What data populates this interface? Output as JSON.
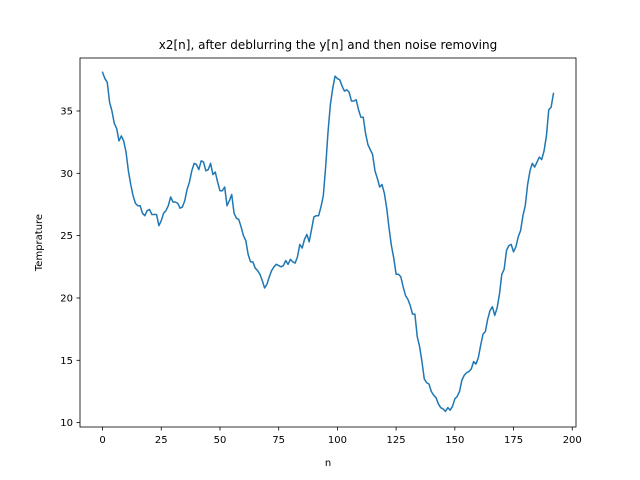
{
  "chart_data": {
    "type": "line",
    "title": "x2[n], after deblurring the y[n] and then noise removing",
    "xlabel": "n",
    "ylabel": "Temprature",
    "xlim": [
      -9.6,
      201.6
    ],
    "ylim": [
      9.65,
      39.25
    ],
    "xticks": [
      0,
      25,
      50,
      75,
      100,
      125,
      150,
      175,
      200
    ],
    "yticks": [
      10,
      15,
      20,
      25,
      30,
      35
    ],
    "grid": false,
    "line_color": "#1f77b4",
    "series": [
      {
        "x": [
          0,
          1,
          2,
          3,
          4,
          5,
          6,
          7,
          8,
          9,
          10,
          11,
          12,
          13,
          14,
          15,
          16,
          17,
          18,
          19,
          20,
          21,
          22,
          23,
          24,
          25,
          26,
          27,
          28,
          29,
          30,
          31,
          32,
          33,
          34,
          35,
          36,
          37,
          38,
          39,
          40,
          41,
          42,
          43,
          44,
          45,
          46,
          47,
          48,
          49,
          50,
          51,
          52,
          53,
          54,
          55,
          56,
          57,
          58,
          59,
          60,
          61,
          62,
          63,
          64,
          65,
          66,
          67,
          68,
          69,
          70,
          71,
          72,
          73,
          74,
          75,
          76,
          77,
          78,
          79,
          80,
          81,
          82,
          83,
          84,
          85,
          86,
          87,
          88,
          89,
          90,
          91,
          92,
          93,
          94,
          95,
          96,
          97,
          98,
          99,
          100,
          101,
          102,
          103,
          104,
          105,
          106,
          107,
          108,
          109,
          110,
          111,
          112,
          113,
          114,
          115,
          116,
          117,
          118,
          119,
          120,
          121,
          122,
          123,
          124,
          125,
          126,
          127,
          128,
          129,
          130,
          131,
          132,
          133,
          134,
          135,
          136,
          137,
          138,
          139,
          140,
          141,
          142,
          143,
          144,
          145,
          146,
          147,
          148,
          149,
          150,
          151,
          152,
          153,
          154,
          155,
          156,
          157,
          158,
          159,
          160,
          161,
          162,
          163,
          164,
          165,
          166,
          167,
          168,
          169,
          170,
          171,
          172,
          173,
          174,
          175,
          176,
          177,
          178,
          179,
          180,
          181,
          182,
          183,
          184,
          185,
          186,
          187,
          188,
          189,
          190,
          191,
          192
        ],
        "y": [
          38.1,
          37.6,
          37.3,
          35.7,
          35.0,
          34.0,
          33.6,
          32.6,
          33.0,
          32.6,
          31.7,
          30.2,
          29.1,
          28.2,
          27.6,
          27.4,
          27.4,
          26.8,
          26.6,
          27.0,
          27.1,
          26.7,
          26.7,
          26.7,
          25.8,
          26.2,
          26.8,
          27.0,
          27.4,
          28.1,
          27.7,
          27.7,
          27.6,
          27.2,
          27.3,
          27.8,
          28.7,
          29.3,
          30.2,
          30.8,
          30.7,
          30.3,
          31.0,
          30.9,
          30.2,
          30.3,
          30.8,
          29.9,
          30.1,
          29.3,
          28.6,
          28.6,
          28.9,
          27.4,
          27.8,
          28.3,
          26.8,
          26.4,
          26.3,
          25.7,
          25.0,
          24.6,
          23.5,
          22.9,
          22.9,
          22.4,
          22.2,
          21.9,
          21.4,
          20.8,
          21.1,
          21.7,
          22.2,
          22.5,
          22.7,
          22.6,
          22.5,
          22.6,
          23.0,
          22.7,
          23.1,
          22.9,
          22.8,
          23.3,
          24.3,
          24.0,
          24.7,
          25.1,
          24.5,
          25.5,
          26.5,
          26.6,
          26.6,
          27.3,
          28.2,
          30.5,
          33.3,
          35.5,
          36.8,
          37.8,
          37.6,
          37.5,
          37.0,
          36.6,
          36.7,
          36.5,
          35.8,
          35.8,
          35.9,
          35.1,
          34.5,
          34.5,
          33.2,
          32.3,
          31.9,
          31.5,
          30.2,
          29.6,
          28.9,
          29.1,
          28.4,
          27.2,
          25.6,
          24.2,
          23.2,
          21.9,
          21.9,
          21.7,
          20.9,
          20.2,
          19.9,
          19.4,
          18.7,
          18.7,
          16.9,
          16.1,
          14.9,
          13.5,
          13.2,
          13.1,
          12.5,
          12.2,
          12.0,
          11.5,
          11.2,
          11.1,
          10.9,
          11.2,
          11.0,
          11.3,
          11.9,
          12.1,
          12.5,
          13.4,
          13.8,
          14.0,
          14.1,
          14.3,
          14.9,
          14.7,
          15.2,
          16.2,
          17.1,
          17.3,
          18.3,
          19.0,
          19.3,
          18.6,
          19.2,
          20.3,
          21.9,
          22.3,
          23.8,
          24.2,
          24.3,
          23.7,
          24.1,
          24.9,
          25.4,
          26.6,
          27.4,
          29.1,
          30.2,
          30.8,
          30.5,
          30.9,
          31.3,
          31.1,
          31.8,
          33.0,
          35.1,
          35.3,
          36.4
        ]
      }
    ]
  }
}
